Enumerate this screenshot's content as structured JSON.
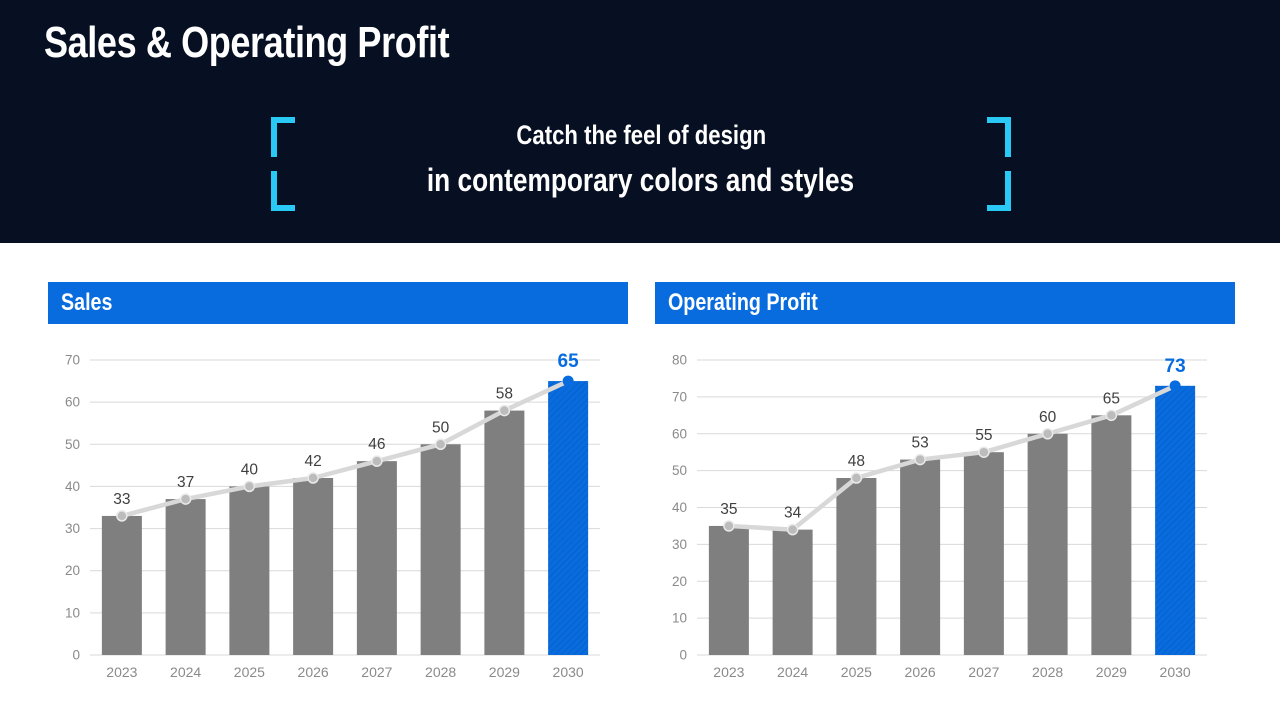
{
  "slide": {
    "title": "Sales & Operating Profit",
    "subtitle_line1": "Catch the feel of design",
    "subtitle_line2": "in contemporary colors and styles"
  },
  "colors": {
    "header_bg": "#071022",
    "accent_blue": "#086cdf",
    "bracket_cyan": "#29c8f5",
    "bar_gray": "#7f7f7f",
    "trend_line_gray": "#d8d8d8",
    "marker_gray": "#bcbcbc",
    "marker_ring": "#e9e9e9",
    "data_label_dark": "#404040",
    "axis_label_gray": "#8a8a8a",
    "gridline_gray": "#d9d9d9",
    "panel_title_text": "#ffffff"
  },
  "chart_data": [
    {
      "type": "bar",
      "overlay": "line",
      "title": "Sales",
      "categories": [
        "2023",
        "2024",
        "2025",
        "2026",
        "2027",
        "2028",
        "2029",
        "2030"
      ],
      "values": [
        33,
        37,
        40,
        42,
        46,
        50,
        58,
        65
      ],
      "ylim": [
        0,
        70
      ],
      "yticks": [
        0,
        10,
        20,
        30,
        40,
        50,
        60,
        70
      ],
      "grid": "horizontal",
      "legend": "none",
      "highlight_index": 7,
      "highlight_style": "blue-hatched-bar"
    },
    {
      "type": "bar",
      "overlay": "line",
      "title": "Operating Profit",
      "categories": [
        "2023",
        "2024",
        "2025",
        "2026",
        "2027",
        "2028",
        "2029",
        "2030"
      ],
      "values": [
        35,
        34,
        48,
        53,
        55,
        60,
        65,
        73
      ],
      "ylim": [
        0,
        80
      ],
      "yticks": [
        0,
        10,
        20,
        30,
        40,
        50,
        60,
        70,
        80
      ],
      "grid": "horizontal",
      "legend": "none",
      "highlight_index": 7,
      "highlight_style": "blue-hatched-bar"
    }
  ]
}
